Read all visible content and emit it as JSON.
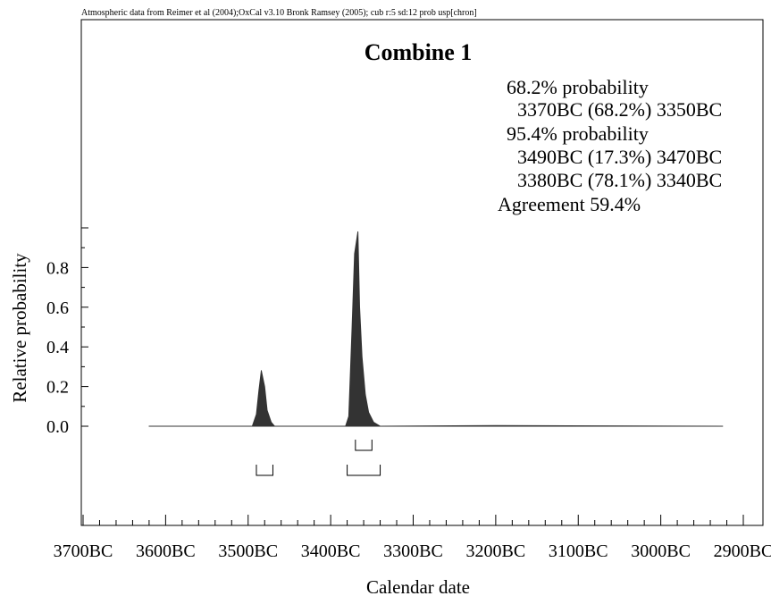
{
  "header": "Atmospheric data from Reimer et al (2004);OxCal v3.10 Bronk Ramsey (2005); cub r:5 sd:12 prob usp[chron]",
  "chart_data": {
    "type": "area",
    "title": "Combine 1",
    "xlabel": "Calendar date",
    "ylabel": "Relative probability",
    "x_range_years": [
      -3700,
      -2900
    ],
    "xlim": [
      "3700BC",
      "2900BC"
    ],
    "ylim": [
      0,
      1
    ],
    "x_ticks": [
      "3700BC",
      "3600BC",
      "3500BC",
      "3400BC",
      "3300BC",
      "3200BC",
      "3100BC",
      "3000BC",
      "2900BC"
    ],
    "y_ticks": [
      "0.0",
      "0.2",
      "0.4",
      "0.6",
      "0.8"
    ],
    "grid": false,
    "legend": "none",
    "fill_color": "#333333",
    "summary": [
      "68.2% probability",
      "3370BC (68.2%) 3350BC",
      "95.4% probability",
      "3490BC (17.3%) 3470BC",
      "3380BC (78.1%) 3340BC",
      "Agreement  59.4%"
    ],
    "curve": [
      {
        "x": -3620,
        "y": 0
      },
      {
        "x": -3495,
        "y": 0
      },
      {
        "x": -3490,
        "y": 0.06
      },
      {
        "x": -3487,
        "y": 0.18
      },
      {
        "x": -3484,
        "y": 0.28
      },
      {
        "x": -3480,
        "y": 0.2
      },
      {
        "x": -3477,
        "y": 0.08
      },
      {
        "x": -3472,
        "y": 0.02
      },
      {
        "x": -3468,
        "y": 0
      },
      {
        "x": -3382,
        "y": 0
      },
      {
        "x": -3378,
        "y": 0.05
      },
      {
        "x": -3374,
        "y": 0.5
      },
      {
        "x": -3371,
        "y": 0.87
      },
      {
        "x": -3367,
        "y": 0.98
      },
      {
        "x": -3365,
        "y": 0.6
      },
      {
        "x": -3362,
        "y": 0.35
      },
      {
        "x": -3358,
        "y": 0.16
      },
      {
        "x": -3354,
        "y": 0.07
      },
      {
        "x": -3348,
        "y": 0.02
      },
      {
        "x": -3340,
        "y": 0
      },
      {
        "x": -3200,
        "y": 0.003
      },
      {
        "x": -2925,
        "y": 0
      }
    ],
    "ranges_68": [
      [
        -3370,
        -3350
      ]
    ],
    "ranges_95": [
      [
        -3490,
        -3470
      ],
      [
        -3380,
        -3340
      ]
    ]
  }
}
